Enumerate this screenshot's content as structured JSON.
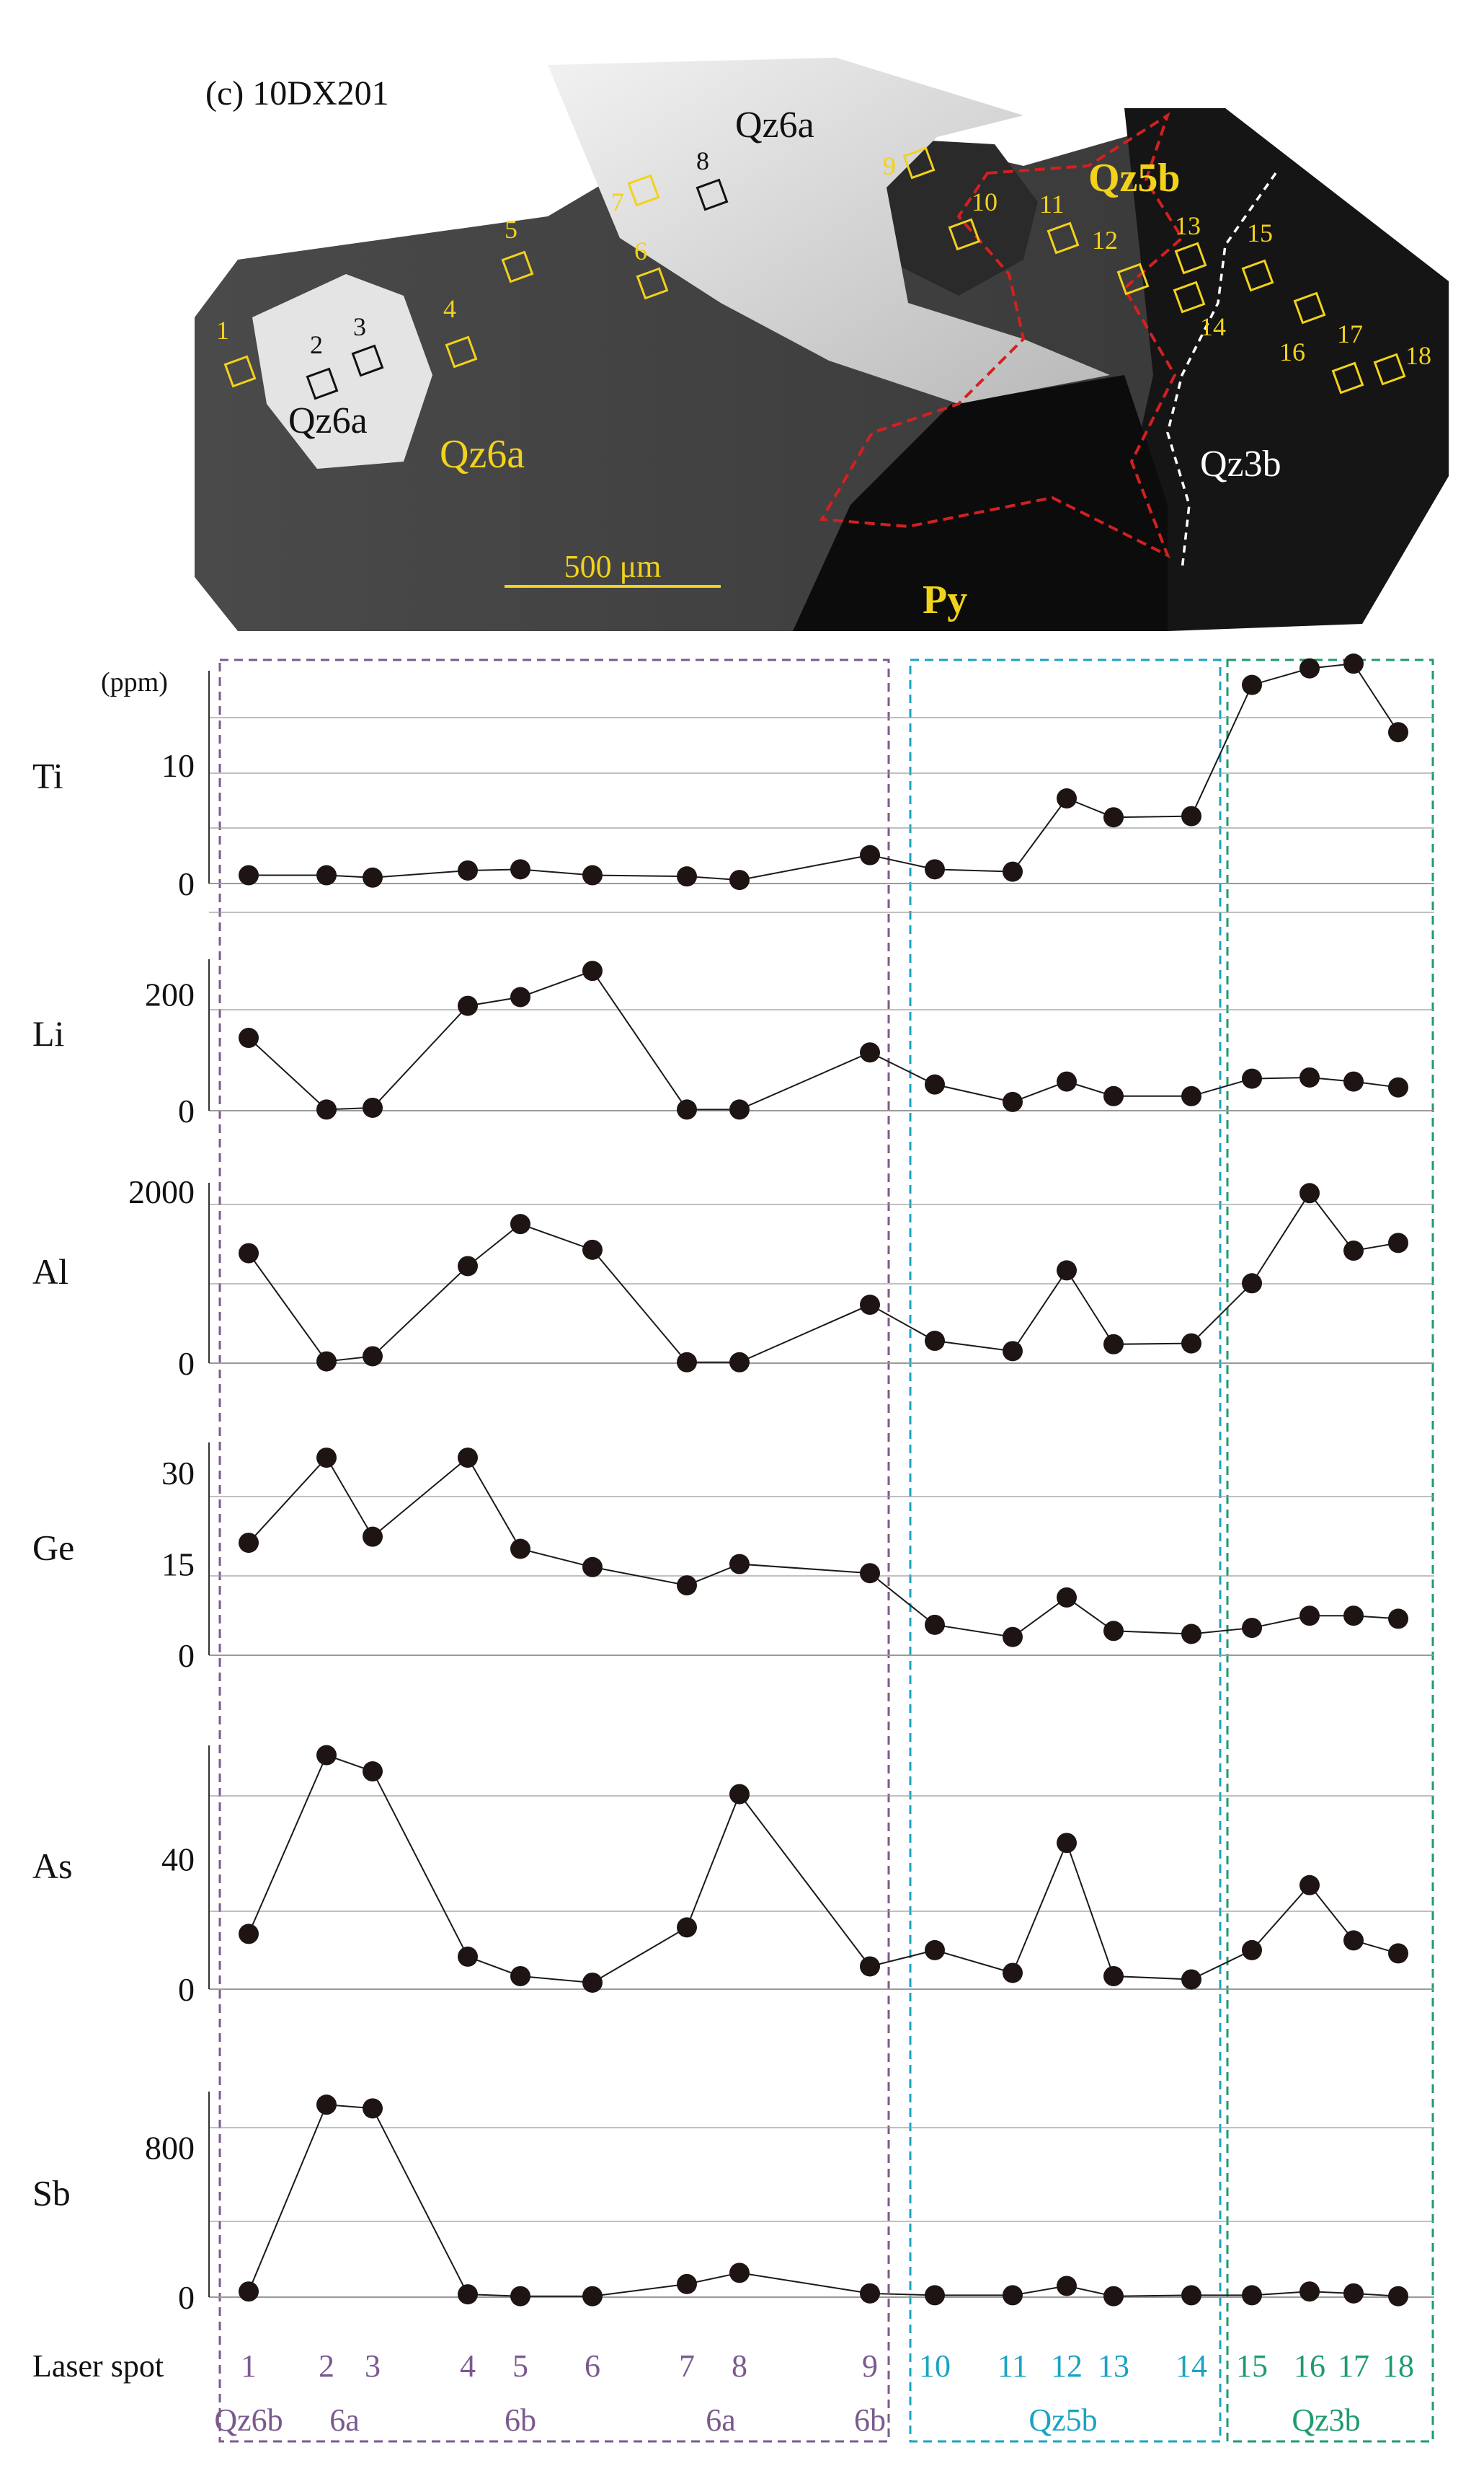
{
  "colors": {
    "purple": "#7b5a8f",
    "cyan": "#1aa3c4",
    "green": "#1f9b6e",
    "yellow": "#f2d21a",
    "red": "#d42020",
    "marker": "#1e1414",
    "grid": "#9a9a9a"
  },
  "image_panel": {
    "title": "(c) 10DX201",
    "scale_bar": "500 μm",
    "labels": {
      "qz6a_top": "Qz6a",
      "qz6a_left_white": "Qz6a",
      "qz6a_yellow": "Qz6a",
      "qz5b": "Qz5b",
      "qz3b": "Qz3b",
      "py": "Py"
    },
    "spots": [
      "1",
      "2",
      "3",
      "4",
      "5",
      "6",
      "7",
      "8",
      "9",
      "10",
      "11",
      "12",
      "13",
      "14",
      "15",
      "16",
      "17",
      "18"
    ]
  },
  "chart_data": {
    "type": "line",
    "unit": "(ppm)",
    "x": [
      1,
      2,
      3,
      4,
      5,
      6,
      7,
      8,
      9,
      10,
      11,
      12,
      13,
      14,
      15,
      16,
      17,
      18
    ],
    "x_label": "Laser spot",
    "x_tick_labels": [
      "1",
      "2",
      "3",
      "4",
      "5",
      "6",
      "7",
      "8",
      "9",
      "10",
      "11",
      "12",
      "13",
      "14",
      "15",
      "16",
      "17",
      "18"
    ],
    "phase_labels": [
      "Qz6b",
      "6a",
      "6b",
      "6a",
      "6b",
      "Qz5b",
      "Qz3b"
    ],
    "groups": [
      {
        "from": 1,
        "to": 9
      },
      {
        "from": 10,
        "to": 14
      },
      {
        "from": 15,
        "to": 18
      }
    ],
    "panels": [
      {
        "element": "Ti",
        "ylim": [
          0,
          18
        ],
        "yticks": [
          "10",
          "0"
        ],
        "ytick_values": [
          10,
          0
        ],
        "values": [
          0.7,
          0.7,
          0.5,
          1.1,
          1.2,
          0.7,
          0.6,
          0.3,
          2.4,
          1.2,
          1.0,
          7.2,
          5.6,
          5.7,
          16.8,
          18.2,
          18.6,
          12.8
        ]
      },
      {
        "element": "Li",
        "ylim": [
          0,
          260
        ],
        "yticks": [
          "200",
          "0"
        ],
        "ytick_values": [
          200,
          0
        ],
        "values": [
          125,
          2,
          5,
          180,
          195,
          240,
          2,
          2,
          100,
          45,
          15,
          50,
          25,
          25,
          55,
          57,
          50,
          40
        ]
      },
      {
        "element": "Al",
        "ylim": [
          0,
          2100
        ],
        "yticks": [
          "2000",
          "0"
        ],
        "ytick_values": [
          2000,
          0
        ],
        "values": [
          1280,
          20,
          80,
          1130,
          1620,
          1320,
          10,
          10,
          680,
          260,
          140,
          1080,
          220,
          230,
          930,
          1980,
          1310,
          1400
        ]
      },
      {
        "element": "Ge",
        "ylim": [
          0,
          35
        ],
        "yticks": [
          "30",
          "15",
          "0"
        ],
        "ytick_values": [
          30,
          15,
          0
        ],
        "values": [
          18.5,
          32.5,
          19.5,
          32.5,
          17.5,
          14.5,
          11.5,
          15.0,
          13.5,
          5.0,
          3.0,
          9.5,
          4.0,
          3.5,
          4.5,
          6.5,
          6.5,
          6.0
        ]
      },
      {
        "element": "As",
        "ylim": [
          0,
          75
        ],
        "yticks": [
          "40",
          "0"
        ],
        "ytick_values": [
          40,
          0
        ],
        "values": [
          17,
          72,
          67,
          10,
          4,
          2,
          19,
          60,
          7,
          12,
          5,
          45,
          4,
          3,
          12,
          32,
          15,
          11
        ]
      },
      {
        "element": "Sb",
        "ylim": [
          0,
          1100
        ],
        "yticks": [
          "800",
          "0"
        ],
        "ytick_values": [
          800,
          0
        ],
        "values": [
          30,
          1030,
          1010,
          15,
          5,
          5,
          70,
          130,
          20,
          10,
          10,
          60,
          5,
          10,
          10,
          30,
          20,
          5
        ]
      }
    ]
  }
}
